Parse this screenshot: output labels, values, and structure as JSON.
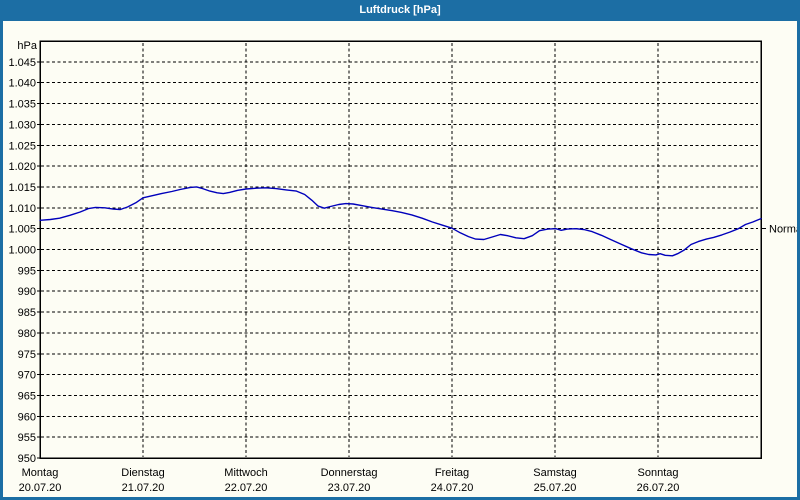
{
  "window": {
    "title": "Luftdruck [hPa]"
  },
  "colors": {
    "frame_blue": "#1c6ea4",
    "content_background": "#fdfdf4",
    "grid": "#000000",
    "line": "#0000bb"
  },
  "chart_data": {
    "type": "line",
    "title": "Luftdruck [hPa]",
    "y_unit_label": "hPa",
    "ylim": [
      950,
      1050
    ],
    "grid": "dashed",
    "y_ticks": [
      {
        "value": 1045,
        "label": "1.045"
      },
      {
        "value": 1040,
        "label": "1.040"
      },
      {
        "value": 1035,
        "label": "1.035"
      },
      {
        "value": 1030,
        "label": "1.030"
      },
      {
        "value": 1025,
        "label": "1.025"
      },
      {
        "value": 1020,
        "label": "1.020"
      },
      {
        "value": 1015,
        "label": "1.015"
      },
      {
        "value": 1010,
        "label": "1.010"
      },
      {
        "value": 1005,
        "label": "1.005"
      },
      {
        "value": 1000,
        "label": "1.000"
      },
      {
        "value": 995,
        "label": "995"
      },
      {
        "value": 990,
        "label": "990"
      },
      {
        "value": 985,
        "label": "985"
      },
      {
        "value": 980,
        "label": "980"
      },
      {
        "value": 975,
        "label": "975"
      },
      {
        "value": 970,
        "label": "970"
      },
      {
        "value": 965,
        "label": "965"
      },
      {
        "value": 960,
        "label": "960"
      },
      {
        "value": 955,
        "label": "955"
      },
      {
        "value": 950,
        "label": "950"
      }
    ],
    "x_days": [
      {
        "name": "Montag",
        "date": "20.07.20"
      },
      {
        "name": "Dienstag",
        "date": "21.07.20"
      },
      {
        "name": "Mittwoch",
        "date": "22.07.20"
      },
      {
        "name": "Donnerstag",
        "date": "23.07.20"
      },
      {
        "name": "Freitag",
        "date": "24.07.20"
      },
      {
        "name": "Samstag",
        "date": "25.07.20"
      },
      {
        "name": "Sonntag",
        "date": "26.07.20"
      }
    ],
    "normal_marker": {
      "label": "Normal",
      "value": 1005
    },
    "series": [
      {
        "name": "Luftdruck",
        "color": "#0000bb",
        "points": [
          [
            0.0,
            1007.0
          ],
          [
            0.1,
            1007.2
          ],
          [
            0.19,
            1007.5
          ],
          [
            0.29,
            1008.2
          ],
          [
            0.39,
            1009.0
          ],
          [
            0.47,
            1009.8
          ],
          [
            0.54,
            1010.1
          ],
          [
            0.63,
            1010.0
          ],
          [
            0.71,
            1009.7
          ],
          [
            0.78,
            1009.6
          ],
          [
            0.85,
            1010.2
          ],
          [
            0.93,
            1011.2
          ],
          [
            1.0,
            1012.4
          ],
          [
            1.09,
            1012.9
          ],
          [
            1.18,
            1013.4
          ],
          [
            1.28,
            1013.9
          ],
          [
            1.36,
            1014.4
          ],
          [
            1.46,
            1014.9
          ],
          [
            1.52,
            1015.0
          ],
          [
            1.58,
            1014.6
          ],
          [
            1.65,
            1014.0
          ],
          [
            1.72,
            1013.6
          ],
          [
            1.78,
            1013.4
          ],
          [
            1.84,
            1013.7
          ],
          [
            1.92,
            1014.2
          ],
          [
            2.0,
            1014.5
          ],
          [
            2.1,
            1014.7
          ],
          [
            2.19,
            1014.8
          ],
          [
            2.29,
            1014.6
          ],
          [
            2.39,
            1014.3
          ],
          [
            2.49,
            1014.0
          ],
          [
            2.57,
            1013.2
          ],
          [
            2.64,
            1011.8
          ],
          [
            2.7,
            1010.4
          ],
          [
            2.76,
            1009.9
          ],
          [
            2.82,
            1010.3
          ],
          [
            2.9,
            1010.8
          ],
          [
            2.97,
            1011.0
          ],
          [
            3.04,
            1010.9
          ],
          [
            3.13,
            1010.5
          ],
          [
            3.22,
            1010.1
          ],
          [
            3.32,
            1009.7
          ],
          [
            3.42,
            1009.3
          ],
          [
            3.51,
            1008.9
          ],
          [
            3.61,
            1008.3
          ],
          [
            3.71,
            1007.5
          ],
          [
            3.81,
            1006.6
          ],
          [
            3.9,
            1005.9
          ],
          [
            4.0,
            1005.1
          ],
          [
            4.08,
            1004.0
          ],
          [
            4.16,
            1003.1
          ],
          [
            4.23,
            1002.5
          ],
          [
            4.31,
            1002.4
          ],
          [
            4.39,
            1003.0
          ],
          [
            4.47,
            1003.6
          ],
          [
            4.54,
            1003.3
          ],
          [
            4.62,
            1002.8
          ],
          [
            4.7,
            1002.6
          ],
          [
            4.78,
            1003.3
          ],
          [
            4.85,
            1004.5
          ],
          [
            4.93,
            1004.9
          ],
          [
            5.01,
            1005.0
          ],
          [
            5.06,
            1004.6
          ],
          [
            5.12,
            1004.9
          ],
          [
            5.2,
            1005.0
          ],
          [
            5.28,
            1004.8
          ],
          [
            5.36,
            1004.3
          ],
          [
            5.45,
            1003.4
          ],
          [
            5.54,
            1002.4
          ],
          [
            5.64,
            1001.3
          ],
          [
            5.74,
            1000.2
          ],
          [
            5.84,
            999.2
          ],
          [
            5.91,
            998.8
          ],
          [
            5.98,
            998.7
          ],
          [
            6.02,
            999.0
          ],
          [
            6.07,
            998.6
          ],
          [
            6.14,
            998.5
          ],
          [
            6.19,
            999.0
          ],
          [
            6.25,
            999.8
          ],
          [
            6.32,
            1001.2
          ],
          [
            6.39,
            1001.9
          ],
          [
            6.47,
            1002.5
          ],
          [
            6.54,
            1002.9
          ],
          [
            6.62,
            1003.5
          ],
          [
            6.7,
            1004.2
          ],
          [
            6.78,
            1005.0
          ],
          [
            6.85,
            1006.0
          ],
          [
            6.92,
            1006.6
          ],
          [
            7.0,
            1007.4
          ]
        ]
      }
    ]
  }
}
